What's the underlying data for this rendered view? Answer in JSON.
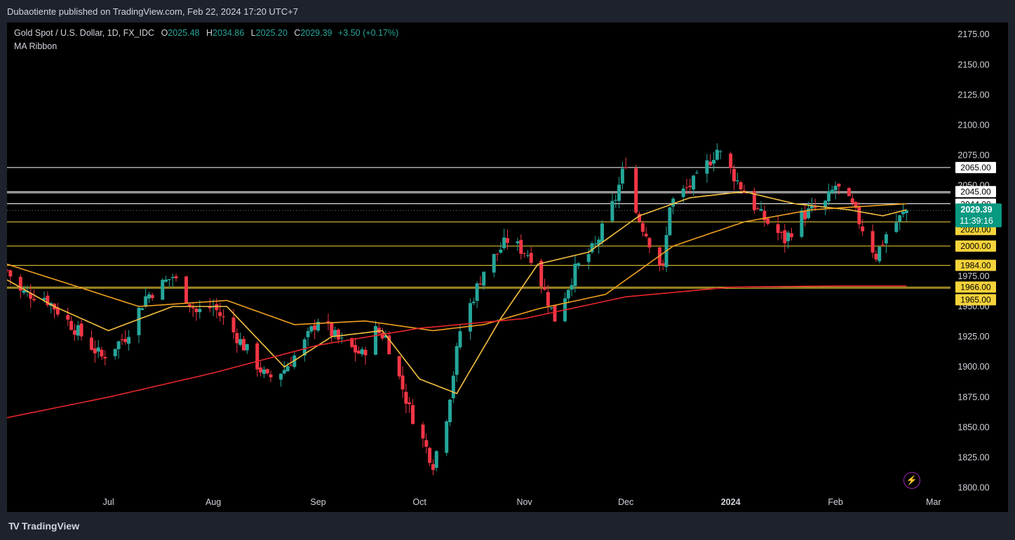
{
  "header": {
    "published": "Dubaotiente published on TradingView.com, Feb 22, 2024 17:20 UTC+7"
  },
  "legend": {
    "symbol": "Gold Spot / U.S. Dollar, 1D, FX_IDC",
    "o_label": "O",
    "o": "2025.48",
    "h_label": "H",
    "h": "2034.86",
    "l_label": "L",
    "l": "2025.20",
    "c_label": "C",
    "c": "2029.39",
    "change": "+3.50 (+0.17%)",
    "indicator": "MA Ribbon"
  },
  "footer": {
    "brand": "TradingView",
    "logo": "TV"
  },
  "icons": {
    "bolt": "lightning-icon"
  },
  "colors": {
    "bg": "#000000",
    "up": "#26a69a",
    "down": "#f23645",
    "ma_fast": "#f6c142",
    "ma_mid": "#f0a020",
    "ma_slow": "#e8262b",
    "level_white": "#ffffff",
    "level_yellow": "#f5d33a",
    "price": "#089981"
  },
  "chart_data": {
    "type": "candlestick",
    "title": "Gold Spot / U.S. Dollar, 1D, FX_IDC",
    "ylim": [
      1780,
      2185
    ],
    "y_ticks": [
      1800,
      1825,
      1850,
      1875,
      1900,
      1925,
      1950,
      1975,
      2000,
      2025,
      2050,
      2075,
      2100,
      2125,
      2150,
      2175
    ],
    "y_tick_labels": [
      "1800.00",
      "1825.00",
      "1850.00",
      "1875.00",
      "1900.00",
      "1925.00",
      "1950.00",
      "1975.00",
      "2000.00",
      "2025.00",
      "2050.00",
      "2075.00",
      "2100.00",
      "2125.00",
      "2150.00",
      "2175.00"
    ],
    "x_labels": [
      "Jul",
      "Aug",
      "Sep",
      "Oct",
      "Nov",
      "Dec",
      "2024",
      "Feb",
      "Mar"
    ],
    "x_label_dates": [
      "2023-07-01",
      "2023-08-01",
      "2023-09-01",
      "2023-10-01",
      "2023-11-01",
      "2023-12-01",
      "2024-01-01",
      "2024-02-01",
      "2024-03-01"
    ],
    "date_start": "2023-06-01",
    "date_end": "2024-03-06",
    "current_price": 2029.39,
    "current_price_label": "2029.39",
    "countdown": "11:39:16",
    "horizontal_levels": [
      {
        "value": 2065,
        "label": "2065.00",
        "color": "white"
      },
      {
        "value": 2045,
        "label": "2045.00",
        "color": "white"
      },
      {
        "value": 2044,
        "label": "2044.00",
        "color": "white"
      },
      {
        "value": 2035,
        "label": "2035.00",
        "color": "white"
      },
      {
        "value": 2020,
        "label": "2020.00",
        "color": "yellow"
      },
      {
        "value": 2000,
        "label": "2000.00",
        "color": "yellow"
      },
      {
        "value": 1984,
        "label": "1984.00",
        "color": "yellow"
      },
      {
        "value": 1966,
        "label": "1966.00",
        "color": "yellow"
      },
      {
        "value": 1965,
        "label": "1965.00",
        "color": "yellow"
      }
    ],
    "series": [
      {
        "type": "ohlc",
        "close_anchors": [
          [
            "2023-06-01",
            1980
          ],
          [
            "2023-06-05",
            1962
          ],
          [
            "2023-06-12",
            1958
          ],
          [
            "2023-06-20",
            1935
          ],
          [
            "2023-06-29",
            1908
          ],
          [
            "2023-07-06",
            1925
          ],
          [
            "2023-07-12",
            1958
          ],
          [
            "2023-07-20",
            1975
          ],
          [
            "2023-07-27",
            1945
          ],
          [
            "2023-08-01",
            1950
          ],
          [
            "2023-08-08",
            1925
          ],
          [
            "2023-08-17",
            1890
          ],
          [
            "2023-08-22",
            1898
          ],
          [
            "2023-08-28",
            1920
          ],
          [
            "2023-09-01",
            1940
          ],
          [
            "2023-09-07",
            1922
          ],
          [
            "2023-09-14",
            1910
          ],
          [
            "2023-09-18",
            1930
          ],
          [
            "2023-09-21",
            1925
          ],
          [
            "2023-09-28",
            1865
          ],
          [
            "2023-10-05",
            1820
          ],
          [
            "2023-10-09",
            1860
          ],
          [
            "2023-10-13",
            1930
          ],
          [
            "2023-10-20",
            1980
          ],
          [
            "2023-10-27",
            2005
          ],
          [
            "2023-11-03",
            1992
          ],
          [
            "2023-11-10",
            1940
          ],
          [
            "2023-11-16",
            1980
          ],
          [
            "2023-11-22",
            2000
          ],
          [
            "2023-11-28",
            2040
          ],
          [
            "2023-12-01",
            2070
          ],
          [
            "2023-12-04",
            2028
          ],
          [
            "2023-12-12",
            1980
          ],
          [
            "2023-12-14",
            2035
          ],
          [
            "2023-12-22",
            2055
          ],
          [
            "2023-12-28",
            2080
          ],
          [
            "2024-01-05",
            2045
          ],
          [
            "2024-01-10",
            2025
          ],
          [
            "2024-01-17",
            2005
          ],
          [
            "2024-01-22",
            2025
          ],
          [
            "2024-01-29",
            2035
          ],
          [
            "2024-02-01",
            2050
          ],
          [
            "2024-02-06",
            2032
          ],
          [
            "2024-02-13",
            1992
          ],
          [
            "2024-02-16",
            2010
          ],
          [
            "2024-02-22",
            2029.39
          ]
        ]
      },
      {
        "name": "",
        "ma": "fast",
        "anchors": [
          [
            "2023-06-01",
            1972
          ],
          [
            "2023-06-15",
            1950
          ],
          [
            "2023-07-01",
            1930
          ],
          [
            "2023-07-20",
            1950
          ],
          [
            "2023-08-05",
            1950
          ],
          [
            "2023-08-22",
            1900
          ],
          [
            "2023-09-05",
            1925
          ],
          [
            "2023-09-20",
            1930
          ],
          [
            "2023-10-01",
            1890
          ],
          [
            "2023-10-12",
            1878
          ],
          [
            "2023-10-25",
            1940
          ],
          [
            "2023-11-05",
            1985
          ],
          [
            "2023-11-20",
            1995
          ],
          [
            "2023-12-05",
            2025
          ],
          [
            "2023-12-20",
            2040
          ],
          [
            "2024-01-05",
            2045
          ],
          [
            "2024-01-20",
            2035
          ],
          [
            "2024-02-05",
            2030
          ],
          [
            "2024-02-15",
            2025
          ],
          [
            "2024-02-22",
            2030
          ]
        ]
      },
      {
        "name": "",
        "ma": "mid",
        "anchors": [
          [
            "2023-06-01",
            1985
          ],
          [
            "2023-06-20",
            1968
          ],
          [
            "2023-07-10",
            1950
          ],
          [
            "2023-08-05",
            1955
          ],
          [
            "2023-08-25",
            1935
          ],
          [
            "2023-09-15",
            1938
          ],
          [
            "2023-10-05",
            1930
          ],
          [
            "2023-10-20",
            1935
          ],
          [
            "2023-11-05",
            1948
          ],
          [
            "2023-11-25",
            1960
          ],
          [
            "2023-12-15",
            2000
          ],
          [
            "2024-01-05",
            2020
          ],
          [
            "2024-01-25",
            2030
          ],
          [
            "2024-02-10",
            2033
          ],
          [
            "2024-02-22",
            2035
          ]
        ]
      },
      {
        "name": "",
        "ma": "slow",
        "anchors": [
          [
            "2023-06-01",
            1858
          ],
          [
            "2023-07-01",
            1875
          ],
          [
            "2023-08-01",
            1895
          ],
          [
            "2023-09-01",
            1918
          ],
          [
            "2023-10-01",
            1932
          ],
          [
            "2023-11-01",
            1940
          ],
          [
            "2023-12-01",
            1958
          ],
          [
            "2024-01-01",
            1966
          ],
          [
            "2024-02-01",
            1967
          ],
          [
            "2024-02-22",
            1967
          ]
        ]
      }
    ]
  }
}
